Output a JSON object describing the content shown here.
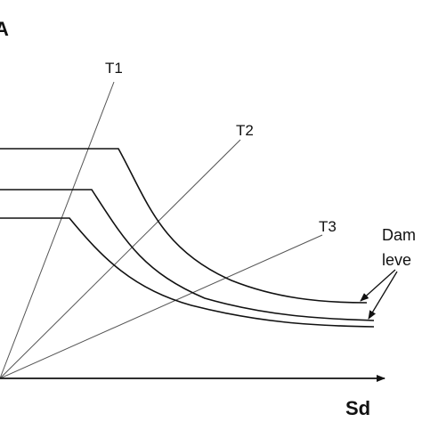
{
  "diagram": {
    "y_axis_label": "A",
    "x_axis_label": "Sd",
    "period_lines": [
      {
        "label": "T1"
      },
      {
        "label": "T2"
      },
      {
        "label": "T3"
      }
    ],
    "annotation_lines": [
      "Dam",
      "leve"
    ],
    "colors": {
      "ink": "#111111",
      "period_line": "#555555",
      "background": "#ffffff"
    }
  }
}
